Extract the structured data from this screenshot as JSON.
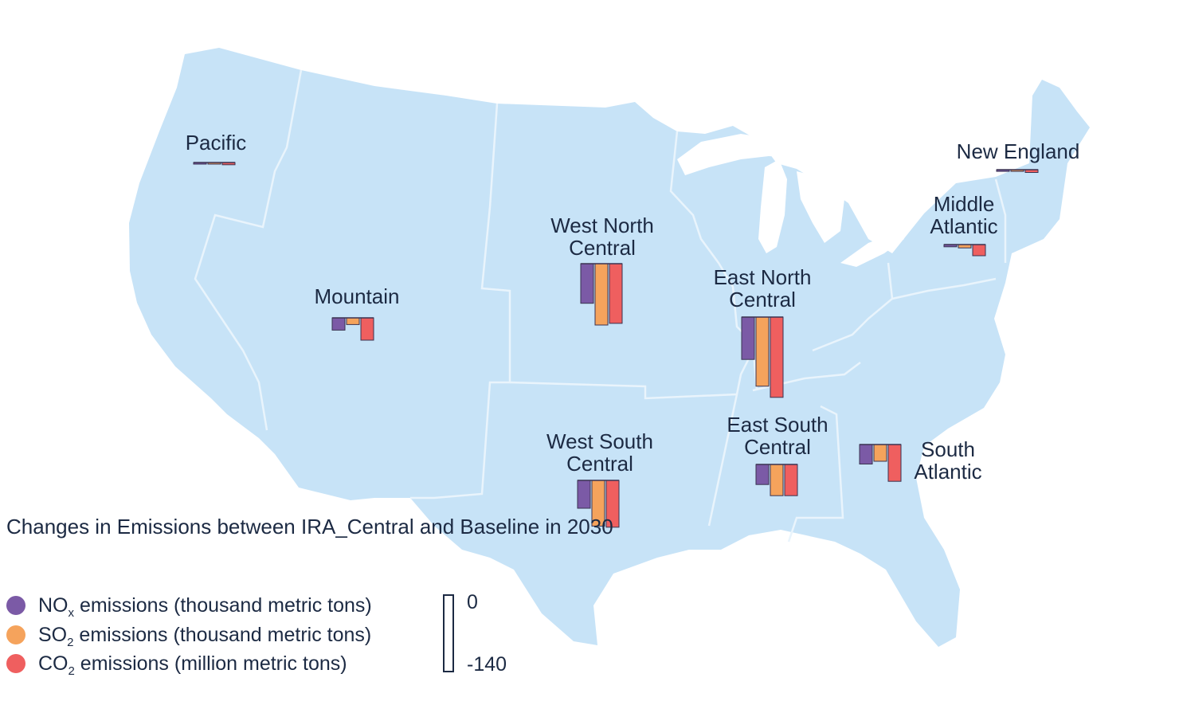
{
  "chart_data": {
    "type": "bar",
    "title": "Changes in Emissions between IRA_Central and Baseline in 2030",
    "scale": {
      "top_label": "0",
      "bottom_label": "-140",
      "min": -140,
      "max": 0
    },
    "series": [
      {
        "name_prefix": "NO",
        "name_sub": "x",
        "name_suffix": " emissions (thousand metric tons)",
        "color": "#7b5aa6"
      },
      {
        "name_prefix": "SO",
        "name_sub": "2",
        "name_suffix": " emissions (thousand metric tons)",
        "color": "#f5a35c"
      },
      {
        "name_prefix": "CO",
        "name_sub": "2",
        "name_suffix": " emissions (million metric tons)",
        "color": "#ef5f5f"
      }
    ],
    "regions": [
      {
        "name": "Pacific",
        "label_lines": [
          "Pacific"
        ],
        "values": [
          -1,
          -1,
          -4
        ]
      },
      {
        "name": "Mountain",
        "label_lines": [
          "Mountain"
        ],
        "values": [
          -22,
          -12,
          -40
        ]
      },
      {
        "name": "West North Central",
        "label_lines": [
          "West North",
          "Central"
        ],
        "values": [
          -71,
          -110,
          -107
        ]
      },
      {
        "name": "East North Central",
        "label_lines": [
          "East North",
          "Central"
        ],
        "values": [
          -76,
          -124,
          -144
        ]
      },
      {
        "name": "West South Central",
        "label_lines": [
          "West South",
          "Central"
        ],
        "values": [
          -50,
          -82,
          -84
        ]
      },
      {
        "name": "East South Central",
        "label_lines": [
          "East South",
          "Central"
        ],
        "values": [
          -36,
          -56,
          -56
        ]
      },
      {
        "name": "South Atlantic",
        "label_lines": [
          "South",
          "Atlantic"
        ],
        "values": [
          -35,
          -30,
          -66
        ]
      },
      {
        "name": "Middle Atlantic",
        "label_lines": [
          "Middle",
          "Atlantic"
        ],
        "values": [
          -4,
          -6,
          -20
        ]
      },
      {
        "name": "New England",
        "label_lines": [
          "New England"
        ],
        "values": [
          -3,
          -3,
          -5
        ]
      }
    ]
  },
  "map": {
    "land_color": "#c7e3f7",
    "border_color": "#e9f4fc",
    "water_color": "#ffffff"
  }
}
